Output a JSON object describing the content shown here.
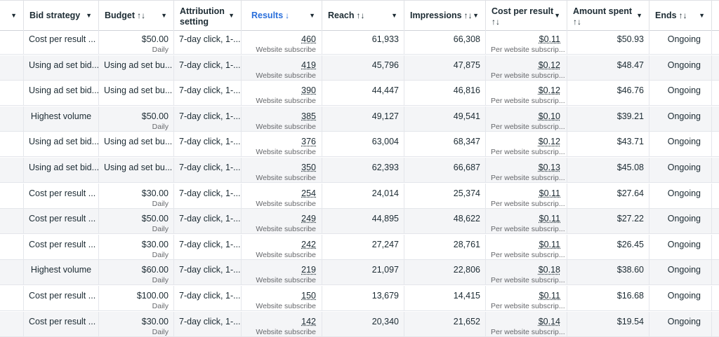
{
  "columns": {
    "bid_strategy": "Bid strategy",
    "budget": "Budget",
    "attribution_line1": "Attribution",
    "attribution_line2": "setting",
    "results": "Results",
    "reach": "Reach",
    "impressions": "Impressions",
    "cost_per_result_line1": "Cost per result",
    "cost_per_result_sort": "↑↓",
    "amount_spent_line1": "Amount spent",
    "amount_spent_sort": "↑↓",
    "ends": "Ends"
  },
  "sort_icons": {
    "budget": "↑↓",
    "results": "↓",
    "reach": "↑↓",
    "impressions": "↑↓",
    "ends": "↑↓"
  },
  "rows": [
    {
      "bid_strategy": "Cost per result ...",
      "budget": "$50.00",
      "budget_sub": "Daily",
      "attribution": "7-day click, 1-...",
      "results": "460",
      "results_sub": "Website subscribe",
      "reach": "61,933",
      "impressions": "66,308",
      "cpr": "$0.11",
      "cpr_sub": "Per website subscrip...",
      "spent": "$50.93",
      "ends": "Ongoing"
    },
    {
      "bid_strategy": "Using ad set bid...",
      "budget": "Using ad set bu...",
      "budget_sub": "",
      "attribution": "7-day click, 1-...",
      "results": "419",
      "results_sub": "Website subscribe",
      "reach": "45,796",
      "impressions": "47,875",
      "cpr": "$0.12",
      "cpr_sub": "Per website subscrip...",
      "spent": "$48.47",
      "ends": "Ongoing"
    },
    {
      "bid_strategy": "Using ad set bid...",
      "budget": "Using ad set bu...",
      "budget_sub": "",
      "attribution": "7-day click, 1-...",
      "results": "390",
      "results_sub": "Website subscribe",
      "reach": "44,447",
      "impressions": "46,816",
      "cpr": "$0.12",
      "cpr_sub": "Per website subscrip...",
      "spent": "$46.76",
      "ends": "Ongoing"
    },
    {
      "bid_strategy": "Highest volume",
      "budget": "$50.00",
      "budget_sub": "Daily",
      "attribution": "7-day click, 1-...",
      "results": "385",
      "results_sub": "Website subscribe",
      "reach": "49,127",
      "impressions": "49,541",
      "cpr": "$0.10",
      "cpr_sub": "Per website subscrip...",
      "spent": "$39.21",
      "ends": "Ongoing"
    },
    {
      "bid_strategy": "Using ad set bid...",
      "budget": "Using ad set bu...",
      "budget_sub": "",
      "attribution": "7-day click, 1-...",
      "results": "376",
      "results_sub": "Website subscribe",
      "reach": "63,004",
      "impressions": "68,347",
      "cpr": "$0.12",
      "cpr_sub": "Per website subscrip...",
      "spent": "$43.71",
      "ends": "Ongoing"
    },
    {
      "bid_strategy": "Using ad set bid...",
      "budget": "Using ad set bu...",
      "budget_sub": "",
      "attribution": "7-day click, 1-...",
      "results": "350",
      "results_sub": "Website subscribe",
      "reach": "62,393",
      "impressions": "66,687",
      "cpr": "$0.13",
      "cpr_sub": "Per website subscrip...",
      "spent": "$45.08",
      "ends": "Ongoing"
    },
    {
      "bid_strategy": "Cost per result ...",
      "budget": "$30.00",
      "budget_sub": "Daily",
      "attribution": "7-day click, 1-...",
      "results": "254",
      "results_sub": "Website subscribe",
      "reach": "24,014",
      "impressions": "25,374",
      "cpr": "$0.11",
      "cpr_sub": "Per website subscrip...",
      "spent": "$27.64",
      "ends": "Ongoing"
    },
    {
      "bid_strategy": "Cost per result ...",
      "budget": "$50.00",
      "budget_sub": "Daily",
      "attribution": "7-day click, 1-...",
      "results": "249",
      "results_sub": "Website subscribe",
      "reach": "44,895",
      "impressions": "48,622",
      "cpr": "$0.11",
      "cpr_sub": "Per website subscrip...",
      "spent": "$27.22",
      "ends": "Ongoing"
    },
    {
      "bid_strategy": "Cost per result ...",
      "budget": "$30.00",
      "budget_sub": "Daily",
      "attribution": "7-day click, 1-...",
      "results": "242",
      "results_sub": "Website subscribe",
      "reach": "27,247",
      "impressions": "28,761",
      "cpr": "$0.11",
      "cpr_sub": "Per website subscrip...",
      "spent": "$26.45",
      "ends": "Ongoing"
    },
    {
      "bid_strategy": "Highest volume",
      "budget": "$60.00",
      "budget_sub": "Daily",
      "attribution": "7-day click, 1-...",
      "results": "219",
      "results_sub": "Website subscribe",
      "reach": "21,097",
      "impressions": "22,806",
      "cpr": "$0.18",
      "cpr_sub": "Per website subscrip...",
      "spent": "$38.60",
      "ends": "Ongoing"
    },
    {
      "bid_strategy": "Cost per result ...",
      "budget": "$100.00",
      "budget_sub": "Daily",
      "attribution": "7-day click, 1-...",
      "results": "150",
      "results_sub": "Website subscribe",
      "reach": "13,679",
      "impressions": "14,415",
      "cpr": "$0.11",
      "cpr_sub": "Per website subscrip...",
      "spent": "$16.68",
      "ends": "Ongoing"
    },
    {
      "bid_strategy": "Cost per result ...",
      "budget": "$30.00",
      "budget_sub": "Daily",
      "attribution": "7-day click, 1-...",
      "results": "142",
      "results_sub": "Website subscribe",
      "reach": "20,340",
      "impressions": "21,652",
      "cpr": "$0.14",
      "cpr_sub": "Per website subscrip...",
      "spent": "$19.54",
      "ends": "Ongoing"
    }
  ]
}
